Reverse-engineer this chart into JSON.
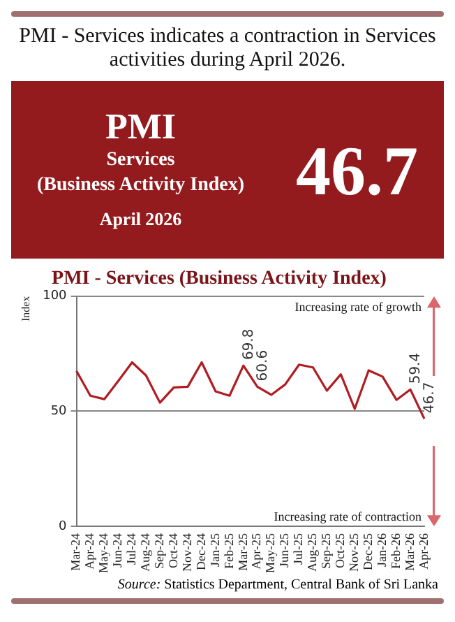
{
  "chart_data": [
    {
      "type": "other",
      "title": "PMI - Services indicates a contraction in Services activities during April 2026.",
      "annotations": [
        "PMI",
        "Services",
        "(Business Activity Index)",
        "April 2026",
        "46.7"
      ]
    },
    {
      "type": "line",
      "title": "PMI - Services (Business Activity Index)",
      "ylabel": "Index",
      "categories": [
        "Mar-24",
        "Apr-24",
        "May-24",
        "Jun-24",
        "Jul-24",
        "Aug-24",
        "Sep-24",
        "Oct-24",
        "Nov-24",
        "Dec-24",
        "Jan-25",
        "Feb-25",
        "Mar-25",
        "Apr-25",
        "May-25",
        "Jun-25",
        "Jul-25",
        "Aug-25",
        "Sep-25",
        "Oct-25",
        "Nov-25",
        "Dec-25",
        "Jan-26",
        "Feb-26",
        "Mar-26",
        "Apr-26"
      ],
      "series": [
        {
          "color": "#b01c22",
          "values": [
            67.5,
            56.7,
            55.2,
            63.1,
            71.2,
            65.5,
            53.7,
            60.3,
            60.6,
            71.2,
            58.6,
            56.7,
            69.8,
            60.6,
            57.1,
            61.6,
            70.2,
            69.0,
            58.9,
            66.0,
            51.0,
            67.7,
            65.0,
            54.9,
            59.4,
            46.7
          ],
          "value_labels": [
            null,
            null,
            null,
            null,
            null,
            null,
            null,
            null,
            null,
            null,
            null,
            null,
            "69.8",
            "60.6",
            null,
            null,
            null,
            null,
            null,
            null,
            null,
            null,
            null,
            null,
            "59.4",
            "46.7"
          ]
        }
      ],
      "ylim": [
        0,
        100
      ],
      "yticks": [
        0,
        50,
        100
      ],
      "grid": "y",
      "marker": "none",
      "line_style": "solid",
      "annotations": [
        "Increasing rate of growth",
        "Increasing rate of contraction",
        "Source: Statistics Department, Central Bank of Sri Lanka"
      ]
    }
  ]
}
